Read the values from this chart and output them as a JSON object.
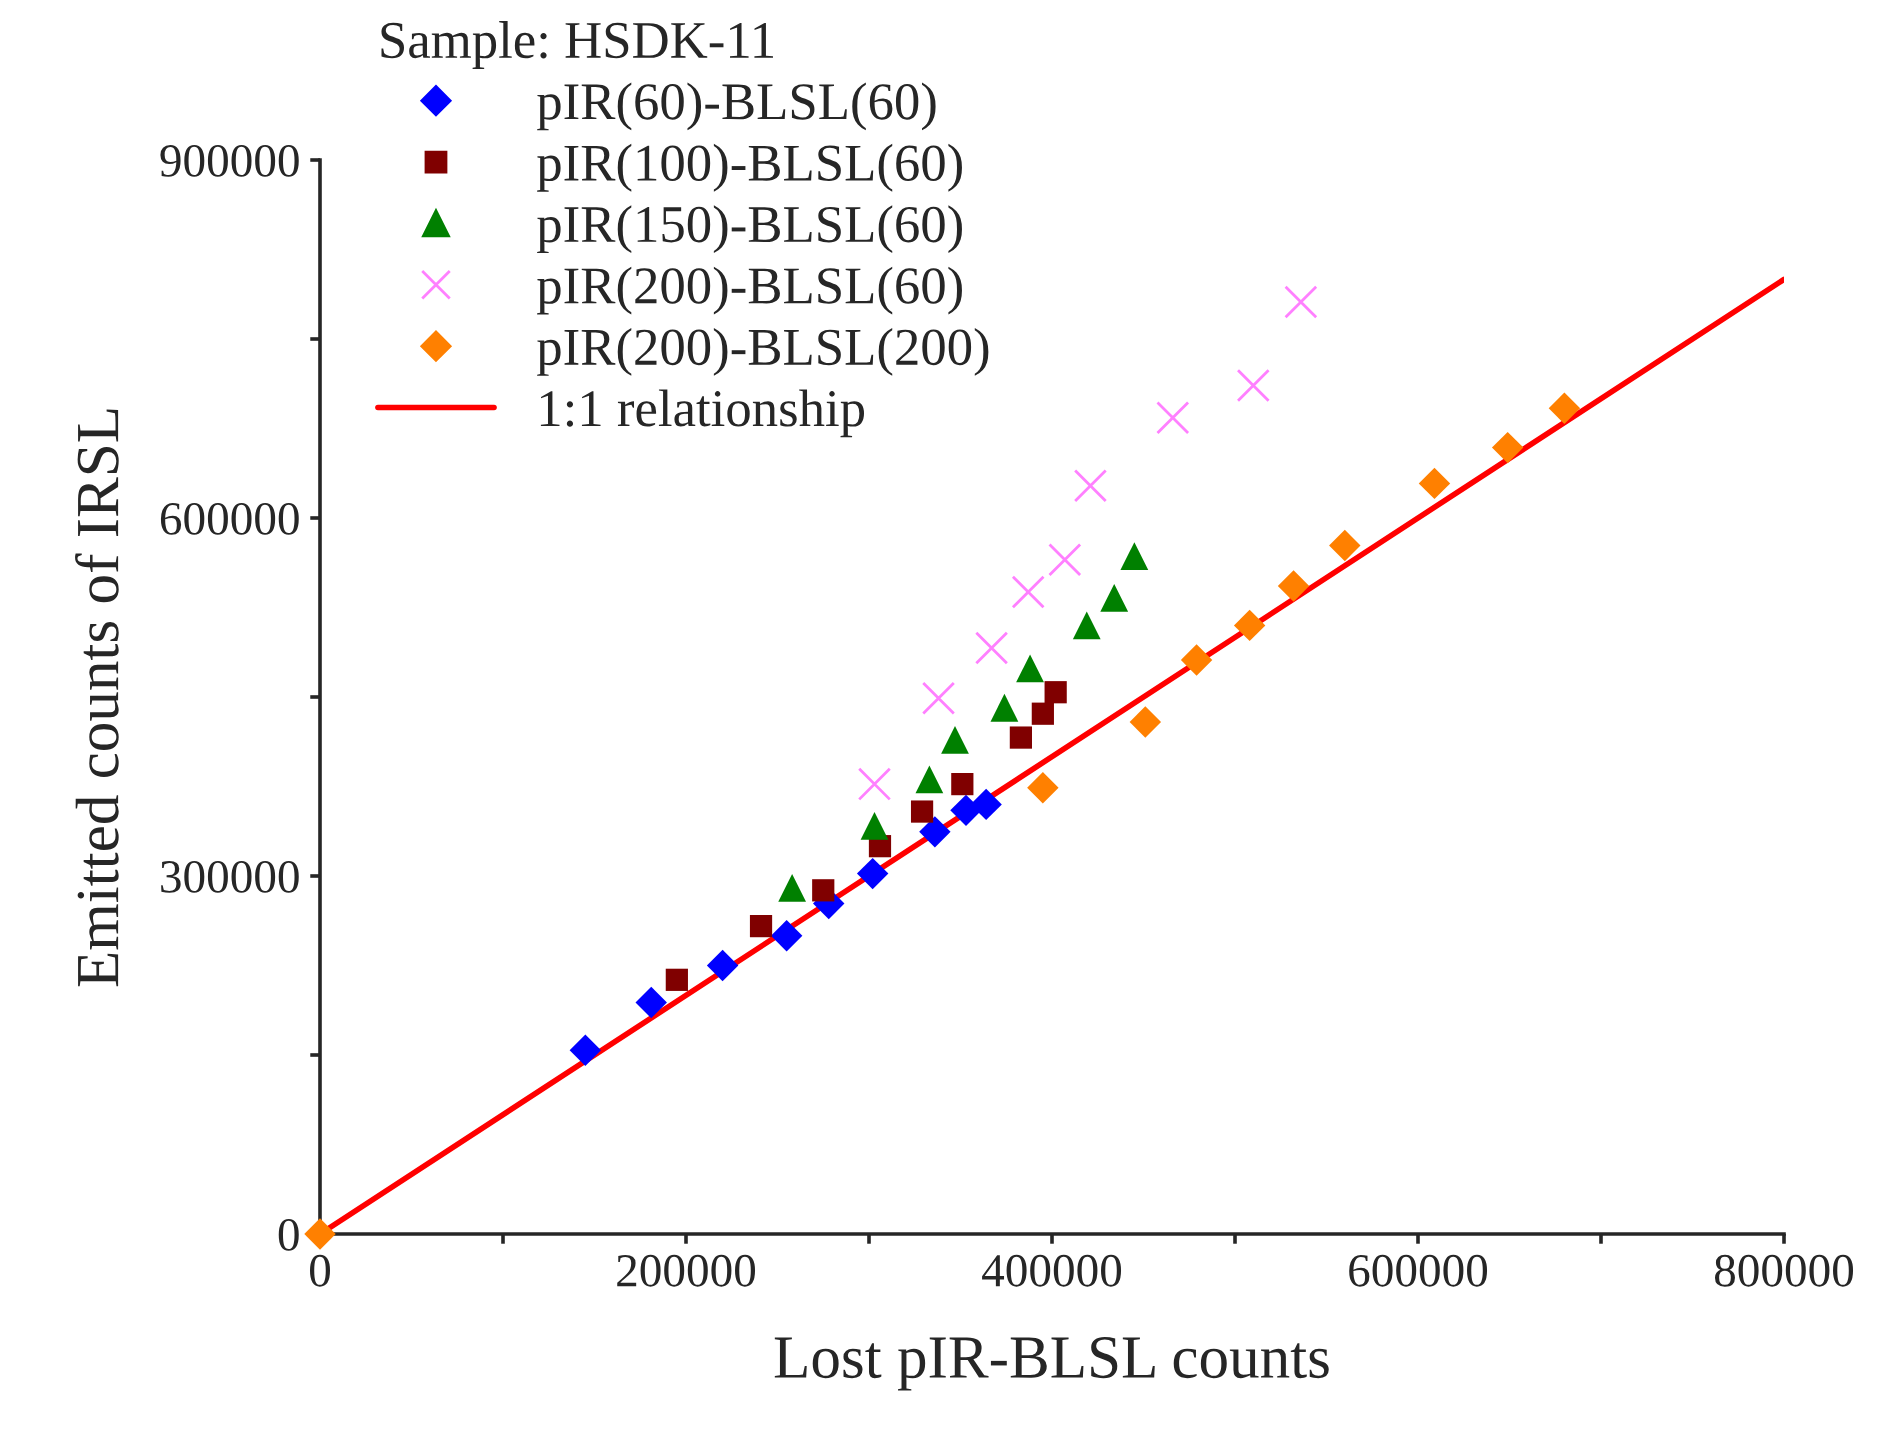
{
  "chart_data": {
    "type": "scatter",
    "xlabel": "Lost pIR-BLSL counts",
    "ylabel": "Emitted counts of IRSL",
    "legend_title": "Sample: HSDK-11",
    "legend": "top left",
    "grid": false,
    "xlim": [
      0,
      800000
    ],
    "ylim": [
      0,
      900000
    ],
    "xticks": [
      0,
      {
        "value": 100000,
        "label": null
      },
      200000,
      {
        "value": 300000,
        "label": null
      },
      400000,
      {
        "value": 500000,
        "label": null
      },
      600000,
      {
        "value": 700000,
        "label": null
      },
      800000
    ],
    "yticks": [
      0,
      {
        "value": 150000,
        "label": null
      },
      300000,
      {
        "value": 450000,
        "label": null
      },
      600000,
      {
        "value": 750000,
        "label": null
      },
      900000
    ],
    "series": [
      {
        "name": "pIR(60)-BLSL(60)",
        "color": "#0000ff",
        "marker": "diamond",
        "x": [
          145000,
          181000,
          220000,
          255000,
          278000,
          302000,
          336000,
          353000,
          364000
        ],
        "values": [
          154000,
          194000,
          225000,
          250000,
          277000,
          302000,
          337000,
          355000,
          360000
        ]
      },
      {
        "name": "pIR(100)-BLSL(60)",
        "color": "#800000",
        "marker": "square",
        "x": [
          195000,
          241000,
          275000,
          306000,
          329000,
          351000,
          383000,
          395000,
          402000
        ],
        "values": [
          213000,
          258000,
          288000,
          325000,
          354000,
          377000,
          416000,
          436000,
          454000
        ]
      },
      {
        "name": "pIR(150)-BLSL(60)",
        "color": "#008000",
        "marker": "triangle",
        "x": [
          258000,
          303000,
          333000,
          347000,
          374000,
          388000,
          419000,
          434000,
          445000
        ],
        "values": [
          290000,
          342000,
          381000,
          414000,
          441000,
          474000,
          510000,
          533000,
          568000
        ]
      },
      {
        "name": "pIR(200)-BLSL(60)",
        "color": "#ff80ff",
        "marker": "cross",
        "x": [
          303000,
          338000,
          367000,
          387000,
          407000,
          421000,
          466000,
          510000,
          536000
        ],
        "values": [
          377000,
          449000,
          491000,
          538000,
          565000,
          627000,
          684000,
          711000,
          781000
        ]
      },
      {
        "name": "pIR(200)-BLSL(200)",
        "color": "#ff8000",
        "marker": "diamond",
        "x": [
          0,
          395000,
          451000,
          479000,
          508000,
          532000,
          560000,
          609000,
          649000,
          680000
        ],
        "values": [
          0,
          374000,
          429000,
          481000,
          510000,
          543000,
          577000,
          629000,
          659000,
          692000
        ]
      },
      {
        "name": "1:1 relationship",
        "type": "line",
        "color": "#ff0000",
        "marker": "none",
        "line_style": "solid",
        "x": [
          0,
          800000
        ],
        "values": [
          0,
          800000
        ]
      }
    ]
  }
}
